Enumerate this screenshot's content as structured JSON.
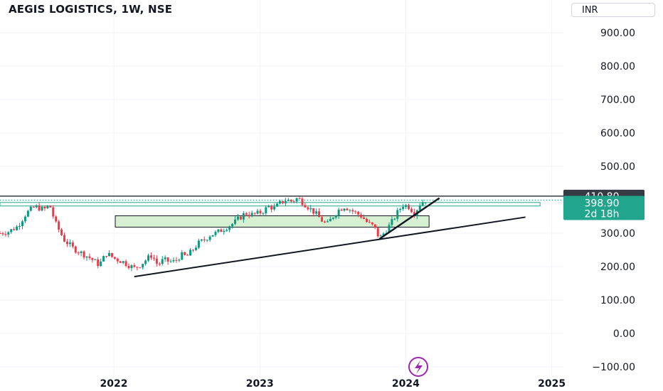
{
  "header": {
    "title": "AEGIS LOGISTICS, 1W, NSE",
    "currency": "INR"
  },
  "price_badges": {
    "resistance": "410.80",
    "last_price": "398.90",
    "countdown": "2d 18h"
  },
  "colors": {
    "up": "#089981",
    "down": "#f23645",
    "zone_fill": "#d8f0d2",
    "badge_dark": "#363a45",
    "badge_teal": "#22a58d",
    "accent_purple": "#9c27b0"
  },
  "icons": {
    "bottom_badge": "lightning-icon"
  },
  "chart_data": {
    "type": "candlestick",
    "title": "AEGIS LOGISTICS, 1W, NSE",
    "xlabel": "",
    "ylabel": "",
    "y_ticks": [
      "900.00",
      "800.00",
      "700.00",
      "600.00",
      "500.00",
      "400.00",
      "300.00",
      "200.00",
      "100.00",
      "0.00",
      "−100.00"
    ],
    "y_tick_values": [
      900,
      800,
      700,
      600,
      500,
      400,
      300,
      200,
      100,
      0,
      -100
    ],
    "x_ticks": [
      "2022",
      "2023",
      "2024",
      "2025"
    ],
    "x_tick_values": [
      2022,
      2023,
      2024,
      2025
    ],
    "xlim": [
      2021.22,
      2025.08
    ],
    "ylim": [
      -120,
      1000
    ],
    "grid": true,
    "close_path": [
      [
        2021.22,
        300
      ],
      [
        2021.28,
        305
      ],
      [
        2021.34,
        320
      ],
      [
        2021.4,
        360
      ],
      [
        2021.46,
        380
      ],
      [
        2021.52,
        370
      ],
      [
        2021.56,
        385
      ],
      [
        2021.6,
        330
      ],
      [
        2021.66,
        280
      ],
      [
        2021.72,
        255
      ],
      [
        2021.78,
        240
      ],
      [
        2021.84,
        225
      ],
      [
        2021.9,
        205
      ],
      [
        2021.95,
        240
      ],
      [
        2022.0,
        225
      ],
      [
        2022.06,
        215
      ],
      [
        2022.1,
        205
      ],
      [
        2022.14,
        195
      ],
      [
        2022.18,
        205
      ],
      [
        2022.22,
        220
      ],
      [
        2022.26,
        235
      ],
      [
        2022.3,
        205
      ],
      [
        2022.34,
        220
      ],
      [
        2022.38,
        215
      ],
      [
        2022.42,
        215
      ],
      [
        2022.46,
        235
      ],
      [
        2022.5,
        230
      ],
      [
        2022.54,
        250
      ],
      [
        2022.58,
        270
      ],
      [
        2022.62,
        280
      ],
      [
        2022.66,
        295
      ],
      [
        2022.7,
        300
      ],
      [
        2022.74,
        310
      ],
      [
        2022.78,
        320
      ],
      [
        2022.82,
        330
      ],
      [
        2022.86,
        345
      ],
      [
        2022.9,
        360
      ],
      [
        2022.94,
        355
      ],
      [
        2022.98,
        358
      ],
      [
        2023.02,
        365
      ],
      [
        2023.06,
        380
      ],
      [
        2023.1,
        375
      ],
      [
        2023.14,
        390
      ],
      [
        2023.18,
        400
      ],
      [
        2023.22,
        395
      ],
      [
        2023.26,
        405
      ],
      [
        2023.3,
        390
      ],
      [
        2023.34,
        375
      ],
      [
        2023.38,
        360
      ],
      [
        2023.42,
        340
      ],
      [
        2023.46,
        325
      ],
      [
        2023.5,
        350
      ],
      [
        2023.54,
        370
      ],
      [
        2023.58,
        380
      ],
      [
        2023.62,
        370
      ],
      [
        2023.66,
        360
      ],
      [
        2023.7,
        350
      ],
      [
        2023.74,
        330
      ],
      [
        2023.78,
        320
      ],
      [
        2023.82,
        285
      ],
      [
        2023.86,
        305
      ],
      [
        2023.9,
        330
      ],
      [
        2023.94,
        360
      ],
      [
        2023.98,
        385
      ],
      [
        2024.02,
        380
      ],
      [
        2024.06,
        360
      ],
      [
        2024.1,
        390
      ],
      [
        2024.14,
        400
      ]
    ],
    "annotations": {
      "horizontal_lines": [
        410.8,
        398.9
      ],
      "zones": [
        {
          "x": [
            2022.0,
            2024.15
          ],
          "y": [
            318,
            352
          ]
        }
      ],
      "trendlines": [
        {
          "from": [
            2022.14,
            170
          ],
          "to": [
            2024.82,
            348
          ]
        },
        {
          "from": [
            2023.82,
            283
          ],
          "to": [
            2024.23,
            405
          ]
        }
      ]
    }
  }
}
